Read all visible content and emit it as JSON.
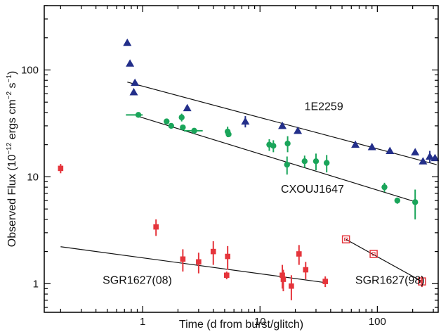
{
  "chart_data": {
    "type": "scatter",
    "title": "",
    "xlabel": "Time (d from burst/glitch)",
    "ylabel_main": "Observed Flux (10",
    "ylabel_exp1": "−12",
    "ylabel_mid": " ergs cm",
    "ylabel_exp2": "−2",
    "ylabel_mid2": " s",
    "ylabel_exp3": "−1",
    "ylabel_end": ")",
    "x_scale": "log",
    "y_scale": "log",
    "xlim": [
      0.145,
      330
    ],
    "ylim": [
      0.54,
      400
    ],
    "x_ticks": [
      {
        "value": 1,
        "label": "1"
      },
      {
        "value": 10,
        "label": "10"
      },
      {
        "value": 100,
        "label": "100"
      }
    ],
    "y_ticks": [
      {
        "value": 1,
        "label": "1"
      },
      {
        "value": 10,
        "label": "10"
      },
      {
        "value": 100,
        "label": "100"
      }
    ],
    "grid": false,
    "series": [
      {
        "label": "1E2259",
        "marker": "triangle",
        "color": "#232f8a",
        "points": [
          {
            "x": 0.74,
            "y": 180
          },
          {
            "x": 0.78,
            "y": 115
          },
          {
            "x": 0.86,
            "y": 76
          },
          {
            "x": 0.84,
            "y": 62
          },
          {
            "x": 2.4,
            "y": 44
          },
          {
            "x": 7.5,
            "y": 33,
            "yerr": [
              4,
              4
            ]
          },
          {
            "x": 15.5,
            "y": 30
          },
          {
            "x": 21,
            "y": 27
          },
          {
            "x": 65,
            "y": 20
          },
          {
            "x": 90,
            "y": 19
          },
          {
            "x": 128,
            "y": 17.5
          },
          {
            "x": 210,
            "y": 17
          },
          {
            "x": 245,
            "y": 14
          },
          {
            "x": 280,
            "y": 15.5,
            "yerr": [
              2,
              2
            ]
          },
          {
            "x": 310,
            "y": 15
          }
        ],
        "fit": {
          "x": [
            0.74,
            320
          ],
          "y": [
            77,
            13
          ]
        },
        "label_pos": {
          "x": 35,
          "y": 42
        }
      },
      {
        "label": "CXOUJ1647",
        "marker": "circle",
        "color": "#1aa55a",
        "points": [
          {
            "x": 0.92,
            "y": 38,
            "xerr": [
              0.2,
              0.08
            ]
          },
          {
            "x": 1.6,
            "y": 33
          },
          {
            "x": 1.75,
            "y": 30
          },
          {
            "x": 2.15,
            "y": 36,
            "yerr": [
              3,
              3
            ]
          },
          {
            "x": 2.2,
            "y": 29
          },
          {
            "x": 2.75,
            "y": 27,
            "xerr": [
              0.5,
              0.5
            ]
          },
          {
            "x": 5.3,
            "y": 26.5,
            "yerr": [
              3,
              3
            ]
          },
          {
            "x": 5.4,
            "y": 25
          },
          {
            "x": 12,
            "y": 20,
            "yerr": [
              2.5,
              2.5
            ]
          },
          {
            "x": 13,
            "y": 19.5,
            "yerr": [
              2.5,
              2.5
            ]
          },
          {
            "x": 17.2,
            "y": 20.5,
            "yerr": [
              3.5,
              3.5
            ]
          },
          {
            "x": 17,
            "y": 13,
            "yerr": [
              2.5,
              2.5
            ]
          },
          {
            "x": 24,
            "y": 14,
            "yerr": [
              1.8,
              1.8
            ]
          },
          {
            "x": 30,
            "y": 14,
            "yerr": [
              2.5,
              2.5
            ]
          },
          {
            "x": 37,
            "y": 13.5,
            "yerr": [
              2.5,
              2.5
            ]
          },
          {
            "x": 115,
            "y": 8,
            "yerr": [
              0.8,
              0.8
            ]
          },
          {
            "x": 148,
            "y": 6,
            "yerr": [
              0.4,
              0.4
            ]
          },
          {
            "x": 210,
            "y": 5.8,
            "yerr": [
              1.8,
              1.8
            ]
          }
        ],
        "fit": {
          "x": [
            0.9,
            215
          ],
          "y": [
            37,
            5.8
          ]
        },
        "label_pos": {
          "x": 28,
          "y": 7.1
        }
      },
      {
        "label": "SGR1627(08)",
        "marker": "square",
        "color": "#e5343b",
        "points": [
          {
            "x": 0.2,
            "y": 12,
            "yerr": [
              1.2,
              1.2
            ]
          },
          {
            "x": 1.3,
            "y": 3.4,
            "yerr": [
              0.6,
              0.6
            ]
          },
          {
            "x": 2.2,
            "y": 1.7,
            "yerr": [
              0.4,
              0.4
            ]
          },
          {
            "x": 3.0,
            "y": 1.6,
            "yerr": [
              0.35,
              0.35
            ]
          },
          {
            "x": 4.0,
            "y": 2.0,
            "yerr": [
              0.5,
              0.5
            ]
          },
          {
            "x": 5.3,
            "y": 1.8,
            "yerr": [
              0.45,
              0.45
            ]
          },
          {
            "x": 5.2,
            "y": 1.2,
            "yerr": [
              0.1,
              0.1
            ]
          },
          {
            "x": 15.5,
            "y": 1.2,
            "yerr": [
              0.3,
              0.3
            ]
          },
          {
            "x": 15.8,
            "y": 1.1,
            "yerr": [
              0.25,
              0.25
            ]
          },
          {
            "x": 18.5,
            "y": 0.95,
            "yerr": [
              0.25,
              0.25
            ]
          },
          {
            "x": 21.5,
            "y": 1.9,
            "yerr": [
              0.4,
              0.4
            ]
          },
          {
            "x": 24.5,
            "y": 1.35,
            "yerr": [
              0.25,
              0.25
            ]
          },
          {
            "x": 36,
            "y": 1.05,
            "yerr": [
              0.12,
              0.12
            ]
          }
        ],
        "fit": {
          "x": [
            0.2,
            37
          ],
          "y": [
            2.22,
            1.02
          ]
        },
        "label_pos": {
          "x": 0.9,
          "y": 1.0
        }
      },
      {
        "label": "SGR1627(98)",
        "marker": "open-square",
        "color": "#e5343b",
        "points": [
          {
            "x": 54,
            "y": 2.6
          },
          {
            "x": 93,
            "y": 1.9
          },
          {
            "x": 240,
            "y": 1.05,
            "yerr": [
              0.12,
              0.12
            ]
          }
        ],
        "fit": {
          "x": [
            54,
            240
          ],
          "y": [
            2.6,
            1.05
          ]
        },
        "label_pos": {
          "x": 128,
          "y": 1.0
        }
      }
    ]
  }
}
